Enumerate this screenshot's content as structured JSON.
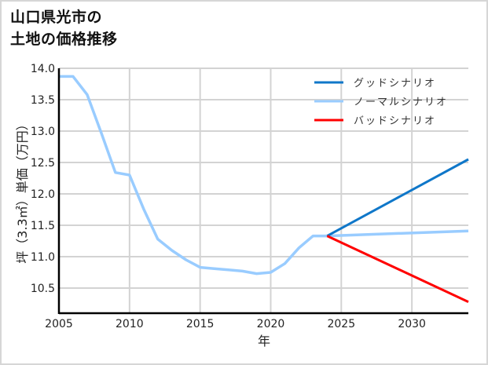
{
  "header": {
    "title_line1": "山口県光市の",
    "title_line2": "土地の価格推移"
  },
  "colors": {
    "good": "#0f77c9",
    "normal": "#99ccff",
    "bad": "#ff0000",
    "grid": "#d3d3d3",
    "axis": "#000000"
  },
  "chart_data": {
    "type": "line",
    "title": "山口県光市の土地の価格推移",
    "xlabel": "年",
    "ylabel": "坪（3.3㎡）単価（万円）",
    "xlim": [
      2005,
      2034
    ],
    "ylim": [
      10.1,
      14.0
    ],
    "x_ticks": [
      2005,
      2010,
      2015,
      2020,
      2025,
      2030
    ],
    "y_ticks": [
      10.5,
      11.0,
      11.5,
      12.0,
      12.5,
      13.0,
      13.5,
      14.0
    ],
    "y_tick_labels": [
      "10.5",
      "11.0",
      "11.5",
      "12.0",
      "12.5",
      "13.0",
      "13.5",
      "14.0"
    ],
    "grid": true,
    "legend_position": "upper right",
    "series": [
      {
        "name": "グッドシナリオ",
        "key": "good",
        "x": [
          2024,
          2034
        ],
        "values": [
          11.33,
          12.55
        ]
      },
      {
        "name": "ノーマルシナリオ",
        "key": "normal",
        "x": [
          2005,
          2006,
          2007,
          2008,
          2009,
          2010,
          2011,
          2012,
          2013,
          2014,
          2015,
          2016,
          2017,
          2018,
          2019,
          2020,
          2021,
          2022,
          2023,
          2024,
          2034
        ],
        "values": [
          13.87,
          13.87,
          13.58,
          12.97,
          12.34,
          12.3,
          11.76,
          11.28,
          11.1,
          10.95,
          10.83,
          10.81,
          10.79,
          10.77,
          10.73,
          10.75,
          10.89,
          11.14,
          11.33,
          11.33,
          11.41
        ]
      },
      {
        "name": "バッドシナリオ",
        "key": "bad",
        "x": [
          2024,
          2034
        ],
        "values": [
          11.33,
          10.28
        ]
      }
    ]
  }
}
